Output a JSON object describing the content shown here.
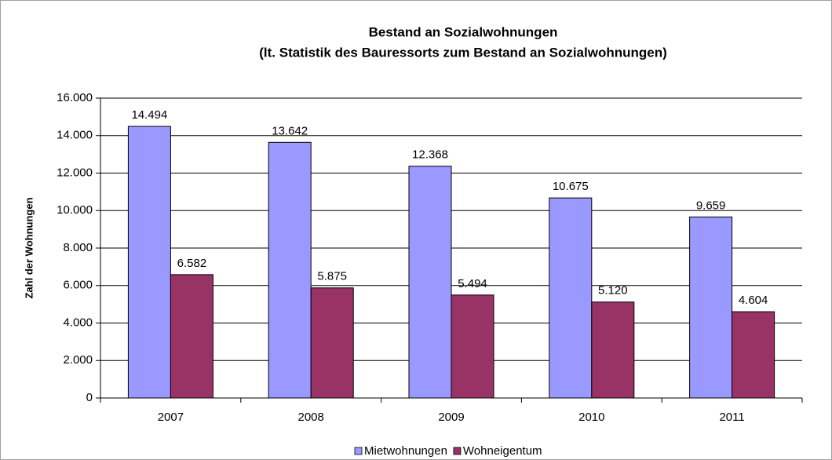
{
  "chart_data": {
    "type": "bar",
    "title": "Bestand an Sozialwohnungen",
    "subtitle": "(lt. Statistik des Bauressorts zum Bestand an Sozialwohnungen)",
    "ylabel": "Zahl der Wohnungen",
    "categories": [
      "2007",
      "2008",
      "2009",
      "2010",
      "2011"
    ],
    "series": [
      {
        "name": "Mietwohnungen",
        "color": "#9999ff",
        "values": [
          14494,
          13642,
          12368,
          10675,
          9659
        ],
        "value_labels": [
          "14.494",
          "13.642",
          "12.368",
          "10.675",
          "9.659"
        ]
      },
      {
        "name": "Wohneigentum",
        "color": "#993366",
        "values": [
          6582,
          5875,
          5494,
          5120,
          4604
        ],
        "value_labels": [
          "6.582",
          "5.875",
          "5.494",
          "5.120",
          "4.604"
        ]
      }
    ],
    "ylim": [
      0,
      16000
    ],
    "yticks": [
      0,
      {
        "value": 2000,
        "label": "2.000"
      },
      {
        "value": 4000,
        "label": "4.000"
      },
      {
        "value": 6000,
        "label": "6.000"
      },
      {
        "value": 8000,
        "label": "8.000"
      },
      {
        "value": 10000,
        "label": "10.000"
      },
      {
        "value": 12000,
        "label": "12.000"
      },
      {
        "value": 14000,
        "label": "14.000"
      },
      {
        "value": 16000,
        "label": "16.000"
      }
    ],
    "grid": true,
    "legend": "bottom"
  }
}
